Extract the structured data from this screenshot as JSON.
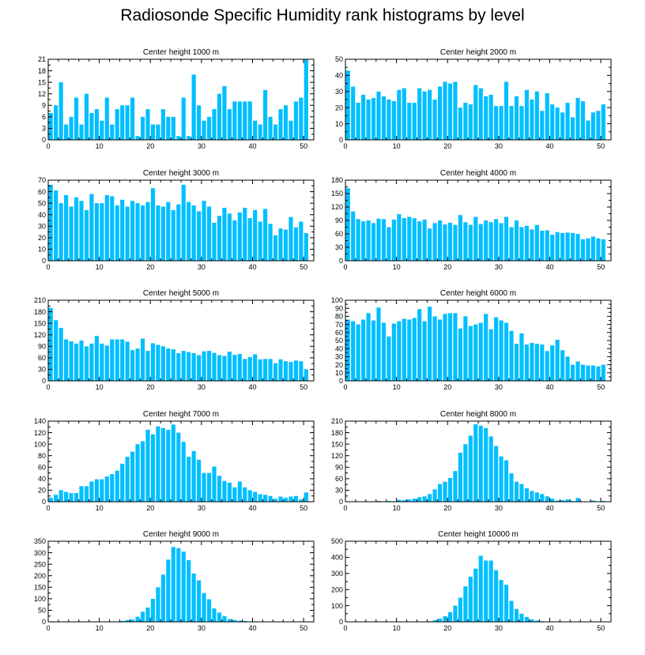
{
  "title": "Radiosonde Specific Humidity rank histograms by level",
  "colors": {
    "bar": "#00bfff",
    "axis": "#000000",
    "background": "#ffffff"
  },
  "chart_data": [
    {
      "type": "bar",
      "title": "Center height 1000 m",
      "xlim": [
        0,
        52
      ],
      "xticks": [
        0,
        10,
        20,
        30,
        40,
        50
      ],
      "ylim": [
        0,
        21
      ],
      "yticks": [
        0,
        3,
        6,
        9,
        12,
        15,
        18,
        21
      ],
      "values": [
        7,
        9,
        15,
        4,
        6,
        11,
        4,
        12,
        7,
        8,
        5,
        11,
        4,
        8,
        9,
        9,
        11,
        1,
        6,
        8,
        4,
        4,
        8,
        6,
        6,
        1,
        11,
        1,
        17,
        9,
        5,
        6,
        8,
        12,
        14,
        8,
        10,
        10,
        10,
        10,
        5,
        4,
        13,
        6,
        4,
        8,
        9,
        5,
        10,
        11,
        21
      ]
    },
    {
      "type": "bar",
      "title": "Center height 2000 m",
      "xlim": [
        0,
        52
      ],
      "xticks": [
        0,
        10,
        20,
        30,
        40,
        50
      ],
      "ylim": [
        0,
        50
      ],
      "yticks": [
        0,
        10,
        20,
        30,
        40,
        50
      ],
      "values": [
        43,
        33,
        23,
        28,
        25,
        26,
        30,
        27,
        25,
        24,
        31,
        32,
        23,
        23,
        32,
        30,
        31,
        25,
        33,
        36,
        35,
        36,
        20,
        23,
        22,
        34,
        32,
        27,
        28,
        21,
        21,
        36,
        21,
        27,
        21,
        31,
        25,
        30,
        18,
        29,
        22,
        20,
        17,
        23,
        14,
        26,
        24,
        12,
        17,
        18,
        22
      ]
    },
    {
      "type": "bar",
      "title": "Center height 3000 m",
      "xlim": [
        0,
        52
      ],
      "xticks": [
        0,
        10,
        20,
        30,
        40,
        50
      ],
      "ylim": [
        0,
        70
      ],
      "yticks": [
        0,
        10,
        20,
        30,
        40,
        50,
        60,
        70
      ],
      "values": [
        66,
        61,
        50,
        57,
        47,
        55,
        52,
        44,
        58,
        50,
        50,
        57,
        56,
        48,
        53,
        47,
        52,
        50,
        48,
        51,
        63,
        48,
        47,
        51,
        44,
        49,
        66,
        51,
        48,
        43,
        52,
        47,
        33,
        39,
        46,
        41,
        35,
        42,
        46,
        37,
        44,
        34,
        45,
        32,
        22,
        28,
        27,
        38,
        29,
        34,
        24
      ]
    },
    {
      "type": "bar",
      "title": "Center height 4000 m",
      "xlim": [
        0,
        52
      ],
      "xticks": [
        0,
        10,
        20,
        30,
        40,
        50
      ],
      "ylim": [
        0,
        180
      ],
      "yticks": [
        0,
        30,
        60,
        90,
        120,
        150,
        180
      ],
      "values": [
        162,
        110,
        93,
        88,
        90,
        84,
        94,
        93,
        75,
        92,
        104,
        95,
        98,
        95,
        88,
        92,
        72,
        84,
        90,
        81,
        85,
        80,
        102,
        86,
        80,
        98,
        82,
        90,
        86,
        93,
        84,
        98,
        75,
        90,
        75,
        78,
        70,
        80,
        67,
        68,
        58,
        64,
        62,
        63,
        62,
        60,
        48,
        50,
        54,
        50,
        48
      ]
    },
    {
      "type": "bar",
      "title": "Center height 5000 m",
      "xlim": [
        0,
        52
      ],
      "xticks": [
        0,
        10,
        20,
        30,
        40,
        50
      ],
      "ylim": [
        0,
        210
      ],
      "yticks": [
        0,
        30,
        60,
        90,
        120,
        150,
        180,
        210
      ],
      "values": [
        190,
        158,
        138,
        108,
        103,
        97,
        105,
        90,
        97,
        117,
        97,
        92,
        108,
        108,
        108,
        102,
        80,
        84,
        110,
        78,
        98,
        94,
        90,
        84,
        82,
        72,
        78,
        75,
        72,
        67,
        77,
        78,
        73,
        67,
        65,
        76,
        68,
        70,
        57,
        62,
        69,
        56,
        57,
        57,
        46,
        56,
        51,
        49,
        53,
        51,
        30
      ]
    },
    {
      "type": "bar",
      "title": "Center height 6000 m",
      "xlim": [
        0,
        52
      ],
      "xticks": [
        0,
        10,
        20,
        30,
        40,
        50
      ],
      "ylim": [
        0,
        100
      ],
      "yticks": [
        0,
        10,
        20,
        30,
        40,
        50,
        60,
        70,
        80,
        90,
        100
      ],
      "values": [
        76,
        74,
        70,
        76,
        84,
        75,
        91,
        72,
        55,
        71,
        74,
        77,
        76,
        78,
        89,
        74,
        92,
        80,
        76,
        83,
        84,
        84,
        65,
        80,
        68,
        70,
        72,
        83,
        64,
        79,
        75,
        72,
        62,
        46,
        59,
        45,
        47,
        46,
        45,
        37,
        44,
        51,
        38,
        30,
        20,
        24,
        20,
        19,
        19,
        18,
        20
      ]
    },
    {
      "type": "bar",
      "title": "Center height 7000 m",
      "xlim": [
        0,
        52
      ],
      "xticks": [
        0,
        10,
        20,
        30,
        40,
        50
      ],
      "ylim": [
        0,
        140
      ],
      "yticks": [
        0,
        20,
        40,
        60,
        80,
        100,
        120,
        140
      ],
      "values": [
        7,
        12,
        20,
        17,
        15,
        15,
        27,
        27,
        35,
        39,
        39,
        44,
        48,
        54,
        66,
        78,
        87,
        100,
        105,
        125,
        117,
        131,
        128,
        125,
        134,
        120,
        104,
        78,
        88,
        73,
        50,
        50,
        61,
        45,
        36,
        33,
        25,
        35,
        25,
        20,
        17,
        13,
        12,
        10,
        5,
        9,
        7,
        9,
        10,
        4,
        16
      ]
    },
    {
      "type": "bar",
      "title": "Center height 8000 m",
      "xlim": [
        0,
        52
      ],
      "xticks": [
        0,
        10,
        20,
        30,
        40,
        50
      ],
      "ylim": [
        0,
        210
      ],
      "yticks": [
        0,
        30,
        60,
        90,
        120,
        150,
        180,
        210
      ],
      "values": [
        0,
        0,
        0,
        0,
        0,
        0,
        2,
        0,
        2,
        0,
        5,
        4,
        6,
        8,
        12,
        14,
        20,
        32,
        46,
        52,
        62,
        80,
        128,
        150,
        172,
        202,
        198,
        192,
        170,
        145,
        118,
        108,
        74,
        52,
        46,
        35,
        28,
        24,
        20,
        14,
        8,
        3,
        4,
        6,
        2,
        10,
        1,
        1,
        3,
        1,
        2
      ]
    },
    {
      "type": "bar",
      "title": "Center height 9000 m",
      "xlim": [
        0,
        52
      ],
      "xticks": [
        0,
        10,
        20,
        30,
        40,
        50
      ],
      "ylim": [
        0,
        350
      ],
      "yticks": [
        0,
        50,
        100,
        150,
        200,
        250,
        300,
        350
      ],
      "values": [
        0,
        0,
        0,
        0,
        0,
        0,
        0,
        0,
        0,
        0,
        0,
        0,
        2,
        2,
        4,
        8,
        10,
        22,
        44,
        62,
        100,
        150,
        205,
        270,
        325,
        320,
        305,
        268,
        210,
        180,
        125,
        98,
        58,
        40,
        25,
        12,
        8,
        5,
        4,
        2,
        2,
        1,
        0,
        0,
        0,
        0,
        0,
        0,
        0,
        0,
        0
      ]
    },
    {
      "type": "bar",
      "title": "Center height 10000 m",
      "xlim": [
        0,
        52
      ],
      "xticks": [
        0,
        10,
        20,
        30,
        40,
        50
      ],
      "ylim": [
        0,
        500
      ],
      "yticks": [
        0,
        100,
        200,
        300,
        400,
        500
      ],
      "values": [
        0,
        0,
        0,
        0,
        0,
        0,
        0,
        0,
        0,
        0,
        0,
        0,
        0,
        0,
        0,
        2,
        4,
        10,
        20,
        35,
        60,
        100,
        150,
        220,
        280,
        330,
        410,
        380,
        380,
        320,
        260,
        230,
        130,
        80,
        50,
        30,
        15,
        8,
        4,
        2,
        1,
        0,
        0,
        0,
        0,
        0,
        0,
        0,
        0,
        0,
        0
      ]
    }
  ]
}
